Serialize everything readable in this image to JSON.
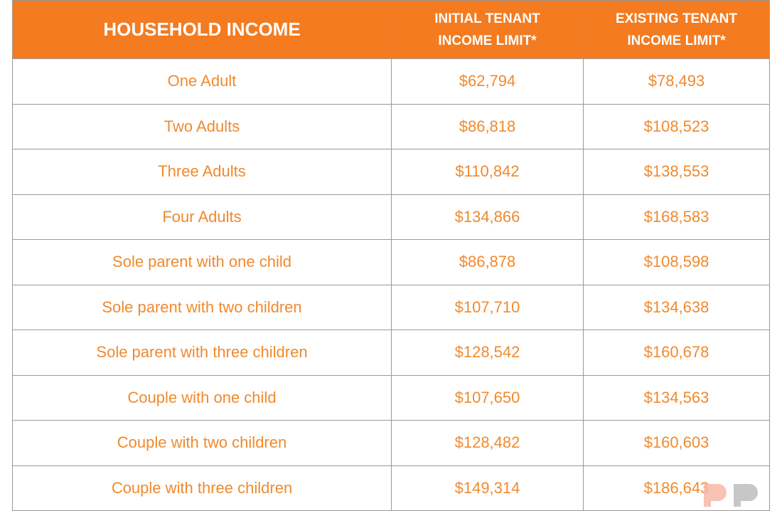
{
  "table": {
    "headers": [
      "HOUSEHOLD INCOME",
      "INITIAL TENANT INCOME LIMIT*",
      "EXISTING TENANT INCOME LIMIT*"
    ],
    "header_lines": {
      "initial": [
        "INITIAL TENANT",
        "INCOME LIMIT*"
      ],
      "existing": [
        "EXISTING TENANT",
        "INCOME LIMIT*"
      ]
    },
    "rows": [
      [
        "One Adult",
        "$62,794",
        "$78,493"
      ],
      [
        "Two Adults",
        "$86,818",
        "$108,523"
      ],
      [
        "Three Adults",
        "$110,842",
        "$138,553"
      ],
      [
        "Four Adults",
        "$134,866",
        "$168,583"
      ],
      [
        "Sole parent with one child",
        "$86,878",
        "$108,598"
      ],
      [
        "Sole parent with two children",
        "$107,710",
        "$134,638"
      ],
      [
        "Sole parent with three children",
        "$128,542",
        "$160,678"
      ],
      [
        "Couple with one child",
        "$107,650",
        "$134,563"
      ],
      [
        "Couple with two children",
        "$128,482",
        "$160,603"
      ],
      [
        "Couple with three children",
        "$149,314",
        "$186,643"
      ]
    ]
  },
  "colors": {
    "header_bg": "#F47B20",
    "header_text": "#FFFFFF",
    "cell_text": "#F08A2E",
    "border": "#999999"
  },
  "watermark": {
    "icon": "logo-watermark-icon"
  }
}
